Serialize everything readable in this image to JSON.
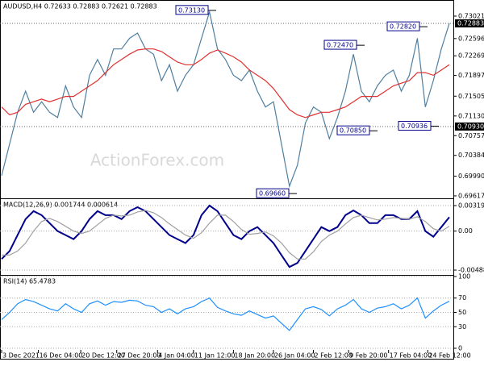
{
  "chart_data": {
    "type": "line",
    "header": "AUDUSD,H4  0.72633 0.72883 0.72621 0.72883",
    "watermark": "ActionForex.com",
    "xticks": [
      {
        "value": 0,
        "label": "3 Dec 2021"
      },
      {
        "value": 4.6,
        "label": "16 Dec 04:00"
      },
      {
        "value": 9.9,
        "label": "20 Dec 12:00"
      },
      {
        "value": 14.4,
        "label": "27 Dec 20:00"
      },
      {
        "value": 19.5,
        "label": "4 Jan 04:00"
      },
      {
        "value": 24,
        "label": "11 Jan 12:00"
      },
      {
        "value": 29,
        "label": "18 Jan 20:00"
      },
      {
        "value": 34,
        "label": "26 Jan 04:00"
      },
      {
        "value": 39,
        "label": "2 Feb 12:00"
      },
      {
        "value": 43.4,
        "label": "9 Feb 20:00"
      },
      {
        "value": 48.4,
        "label": "17 Feb 04:00"
      },
      {
        "value": 53.3,
        "label": "24 Feb 12:00"
      }
    ],
    "price": {
      "ylim": [
        0.69586,
        0.7328
      ],
      "yticks": [
        0.73021,
        0.72596,
        0.72269,
        0.71897,
        0.71505,
        {
          "value": 0.7113,
          "label": "0.71130"
        },
        0.70757,
        0.70384,
        {
          "value": 0.6999,
          "label": "0.69990"
        },
        0.69617
      ],
      "price_lines": [
        {
          "value": 0.72883,
          "label": "0.72883"
        },
        {
          "value": 0.7093,
          "label": "0.70930"
        }
      ],
      "annotations": [
        {
          "value": 0.7313,
          "label": "0.73130"
        },
        {
          "value": 0.7247,
          "label": "0.72470"
        },
        {
          "value": 0.7282,
          "label": "0.72820"
        },
        {
          "value": 0.7085,
          "label": "0.70850"
        },
        {
          "value": 0.70936,
          "label": "0.70936"
        },
        {
          "value": 0.6966,
          "label": "0.69660"
        }
      ],
      "series": [
        {
          "color": "#4f7f9f",
          "values": [
            0.7,
            0.706,
            0.712,
            0.716,
            0.712,
            0.714,
            0.712,
            0.711,
            0.717,
            0.713,
            0.711,
            0.719,
            0.722,
            0.719,
            0.724,
            0.724,
            0.726,
            0.727,
            0.724,
            0.723,
            0.718,
            0.721,
            0.716,
            0.719,
            0.721,
            0.726,
            0.731,
            0.724,
            0.722,
            0.719,
            0.718,
            0.72,
            0.716,
            0.713,
            0.714,
            0.706,
            0.698,
            0.702,
            0.71,
            0.713,
            0.712,
            0.707,
            0.711,
            0.716,
            0.723,
            0.716,
            0.714,
            0.717,
            0.719,
            0.72,
            0.716,
            0.719,
            0.726,
            0.713,
            0.718,
            0.724,
            0.72883
          ]
        },
        {
          "color": "#e03030",
          "values": [
            0.713,
            0.7115,
            0.712,
            0.7135,
            0.714,
            0.7145,
            0.714,
            0.7145,
            0.715,
            0.715,
            0.716,
            0.717,
            0.718,
            0.7195,
            0.721,
            0.722,
            0.723,
            0.7238,
            0.724,
            0.724,
            0.7235,
            0.7225,
            0.7215,
            0.721,
            0.721,
            0.722,
            0.7232,
            0.7238,
            0.7232,
            0.7225,
            0.7215,
            0.72,
            0.719,
            0.718,
            0.7165,
            0.7145,
            0.7125,
            0.7115,
            0.711,
            0.7115,
            0.712,
            0.712,
            0.7125,
            0.713,
            0.714,
            0.715,
            0.715,
            0.715,
            0.716,
            0.717,
            0.7175,
            0.718,
            0.7195,
            0.7195,
            0.719,
            0.72,
            0.721
          ]
        }
      ]
    },
    "macd": {
      "title": "MACD(12,26,9) 0.001744 0.000614",
      "ylim": [
        -0.00539,
        0.00391
      ],
      "yticks": [
        0.003199,
        {
          "value": 0,
          "label": "0.00"
        },
        -0.004887
      ],
      "series": [
        {
          "color": "#00008b",
          "values": [
            -0.0035,
            -0.0025,
            -0.0005,
            0.0015,
            0.0025,
            0.002,
            0.001,
            0,
            -0.0005,
            -0.001,
            0,
            0.0015,
            0.0025,
            0.002,
            0.002,
            0.0015,
            0.0025,
            0.003,
            0.0025,
            0.0015,
            0.0005,
            -0.0005,
            -0.001,
            -0.0015,
            -0.0005,
            0.002,
            0.0032,
            0.0025,
            0.001,
            -0.0005,
            -0.001,
            0,
            0.0005,
            -0.0005,
            -0.0015,
            -0.003,
            -0.0045,
            -0.004,
            -0.0025,
            -0.001,
            0.0005,
            0,
            0.0005,
            0.002,
            0.0026,
            0.002,
            0.001,
            0.001,
            0.002,
            0.002,
            0.0015,
            0.0015,
            0.0025,
            0,
            -0.0007,
            0.0005,
            0.001744
          ]
        },
        {
          "color": "#a0a0a0",
          "values": [
            -0.003,
            -0.003,
            -0.0025,
            -0.0015,
            0,
            0.0012,
            0.0016,
            0.0012,
            0.0006,
            0,
            -0.0003,
            0,
            0.0008,
            0.0016,
            0.002,
            0.0019,
            0.002,
            0.0024,
            0.0026,
            0.0023,
            0.0017,
            0.0009,
            0.0002,
            -0.0005,
            -0.0009,
            -0.0002,
            0.001,
            0.002,
            0.002,
            0.0012,
            0.0002,
            -0.0004,
            -0.0003,
            -0.0001,
            -0.0006,
            -0.0015,
            -0.0027,
            -0.0035,
            -0.0035,
            -0.0026,
            -0.0013,
            -0.0005,
            0,
            0.0009,
            0.0017,
            0.002,
            0.0017,
            0.0014,
            0.0015,
            0.0017,
            0.0016,
            0.0015,
            0.0018,
            0.0012,
            0.0003,
            0,
            0.000614
          ]
        }
      ]
    },
    "rsi": {
      "title": "RSI(14) 65.4783",
      "ylim": [
        0,
        100
      ],
      "yticks": [
        100,
        70,
        50,
        30,
        0
      ],
      "series": [
        {
          "color": "#1e90ff",
          "values": [
            40,
            50,
            62,
            68,
            65,
            60,
            55,
            52,
            62,
            55,
            50,
            62,
            66,
            60,
            65,
            64,
            67,
            66,
            60,
            58,
            50,
            55,
            48,
            55,
            58,
            65,
            70,
            57,
            52,
            48,
            46,
            52,
            47,
            42,
            45,
            35,
            25,
            40,
            55,
            58,
            54,
            45,
            55,
            60,
            68,
            55,
            50,
            56,
            58,
            62,
            55,
            60,
            70,
            42,
            52,
            60,
            65.4783
          ]
        }
      ]
    }
  }
}
